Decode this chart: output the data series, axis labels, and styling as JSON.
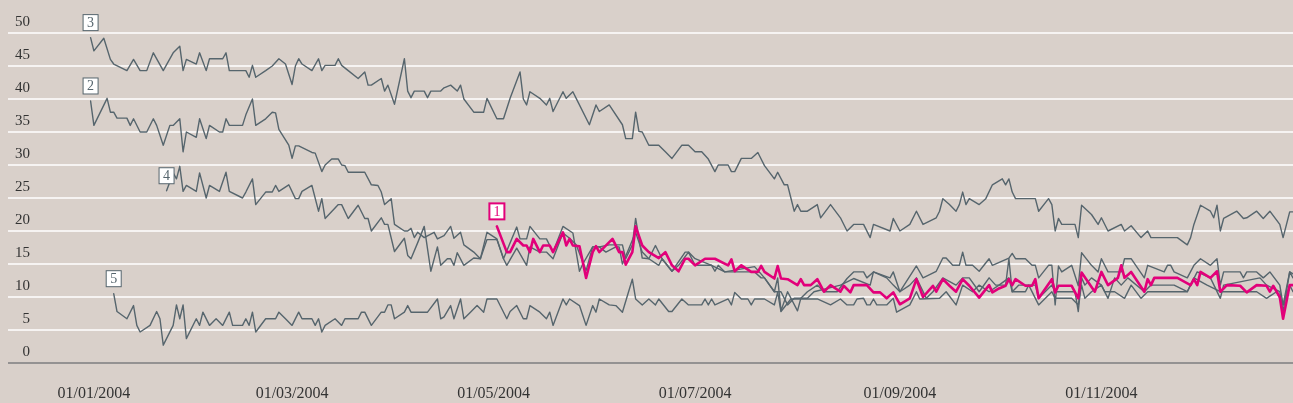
{
  "chart_data": {
    "type": "line",
    "xlim": [
      "2003-12-06",
      "2004-12-29"
    ],
    "ylim": [
      0,
      55
    ],
    "xticks": [
      {
        "value": "2004-01-01",
        "label": "01/01/2004"
      },
      {
        "value": "2004-03-01",
        "label": "01/03/2004"
      },
      {
        "value": "2004-05-01",
        "label": "01/05/2004"
      },
      {
        "value": "2004-07-01",
        "label": "01/07/2004"
      },
      {
        "value": "2004-09-01",
        "label": "01/09/2004"
      },
      {
        "value": "2004-11-01",
        "label": "01/11/2004"
      }
    ],
    "yticks": [
      0,
      5,
      10,
      15,
      20,
      25,
      30,
      35,
      40,
      45,
      50
    ],
    "grid": "y",
    "legend": false,
    "marker": "none",
    "line_style": "solid",
    "series": [
      {
        "name": "1",
        "color": "#e2007a",
        "x": [
          "2004-05-02",
          "2004-05-05",
          "2004-05-06",
          "2004-05-08",
          "2004-05-10",
          "2004-05-11",
          "2004-05-12",
          "2004-05-13",
          "2004-05-15",
          "2004-05-16",
          "2004-05-18",
          "2004-05-19",
          "2004-05-22",
          "2004-05-23",
          "2004-05-24",
          "2004-05-25",
          "2004-05-27",
          "2004-05-29",
          "2004-05-31",
          "2004-06-01",
          "2004-06-02",
          "2004-06-06",
          "2004-06-08",
          "2004-06-09",
          "2004-06-10",
          "2004-06-12",
          "2004-06-13",
          "2004-06-15",
          "2004-06-17",
          "2004-06-20",
          "2004-06-22",
          "2004-06-24",
          "2004-06-26",
          "2004-06-28",
          "2004-06-29",
          "2004-07-01",
          "2004-07-04",
          "2004-07-07",
          "2004-07-11",
          "2004-07-12",
          "2004-07-13",
          "2004-07-15",
          "2004-07-18",
          "2004-07-20",
          "2004-07-21",
          "2004-07-22",
          "2004-07-25",
          "2004-07-26",
          "2004-07-27",
          "2004-07-29",
          "2004-08-01",
          "2004-08-02",
          "2004-08-03",
          "2004-08-05",
          "2004-08-07",
          "2004-08-09",
          "2004-08-11",
          "2004-08-14",
          "2004-08-15",
          "2004-08-17",
          "2004-08-18",
          "2004-08-22",
          "2004-08-24",
          "2004-08-26",
          "2004-08-28",
          "2004-08-30",
          "2004-09-01",
          "2004-09-04",
          "2004-09-06",
          "2004-09-08",
          "2004-09-11",
          "2004-09-12",
          "2004-09-14",
          "2004-09-16",
          "2004-09-18",
          "2004-09-20",
          "2004-09-22",
          "2004-09-25",
          "2004-09-28",
          "2004-09-29",
          "2004-10-01",
          "2004-10-03",
          "2004-10-04",
          "2004-10-05",
          "2004-10-06",
          "2004-10-09",
          "2004-10-11",
          "2004-10-12",
          "2004-10-13",
          "2004-10-17",
          "2004-10-18",
          "2004-10-19",
          "2004-10-23",
          "2004-10-25",
          "2004-10-26",
          "2004-10-30",
          "2004-11-01",
          "2004-11-03",
          "2004-11-06",
          "2004-11-07",
          "2004-11-08",
          "2004-11-10",
          "2004-11-14",
          "2004-11-15",
          "2004-11-16",
          "2004-11-17",
          "2004-11-24",
          "2004-11-28",
          "2004-11-29",
          "2004-11-30",
          "2004-12-01",
          "2004-12-04",
          "2004-12-06",
          "2004-12-07",
          "2004-12-09",
          "2004-12-13",
          "2004-12-15",
          "2004-12-18",
          "2004-12-21",
          "2004-12-22",
          "2004-12-23",
          "2004-12-25",
          "2004-12-26",
          "2004-12-28",
          "2004-12-29"
        ],
        "values": [
          20.7,
          16.8,
          16.8,
          18.8,
          17.8,
          17.8,
          16.8,
          18.8,
          16.8,
          17.8,
          17.8,
          16.8,
          19.8,
          17.8,
          18.8,
          17.8,
          17.7,
          12.9,
          16.8,
          17.7,
          16.8,
          18.8,
          16.8,
          16.8,
          14.9,
          16.8,
          20.7,
          17.8,
          16.8,
          15.9,
          16.8,
          14.8,
          13.9,
          15.8,
          15.8,
          14.8,
          15.8,
          15.8,
          14.8,
          15.7,
          13.9,
          14.8,
          13.8,
          13.8,
          14.7,
          13.8,
          12.8,
          14.7,
          12.8,
          12.7,
          11.8,
          12.7,
          11.8,
          11.8,
          12.7,
          10.8,
          11.8,
          10.8,
          11.7,
          10.7,
          11.8,
          11.8,
          10.7,
          10.7,
          9.8,
          10.7,
          8.9,
          9.8,
          12.7,
          10,
          11.7,
          10.8,
          12.7,
          11.7,
          10.8,
          12.7,
          11.7,
          9.9,
          11.8,
          10.7,
          11.3,
          11.7,
          12.7,
          11.8,
          12.7,
          11.7,
          11.7,
          12.7,
          9.8,
          12.7,
          10.7,
          11.7,
          11.7,
          9.8,
          13.7,
          10.8,
          13.8,
          11.8,
          12.9,
          14.8,
          12.9,
          13.8,
          10.8,
          12.7,
          11.8,
          12.9,
          12.9,
          11.8,
          12.7,
          11.8,
          13.8,
          12.9,
          13.9,
          10.8,
          11.8,
          11.7,
          10.7,
          11.8,
          11.7,
          10.8,
          11.7,
          10,
          6.7,
          11.8,
          11.8
        ]
      },
      {
        "name": "2",
        "color": "#56656d",
        "x": [
          "2003-12-31",
          "2004-01-01",
          "2004-01-05",
          "2004-01-06",
          "2004-01-07",
          "2004-01-08",
          "2004-01-11",
          "2004-01-12",
          "2004-01-13",
          "2004-01-15",
          "2004-01-17",
          "2004-01-19",
          "2004-01-20",
          "2004-01-22",
          "2004-01-24",
          "2004-01-25",
          "2004-01-27",
          "2004-01-28",
          "2004-01-29",
          "2004-02-01",
          "2004-02-02",
          "2004-02-04",
          "2004-02-05",
          "2004-02-08",
          "2004-02-09",
          "2004-02-10",
          "2004-02-11",
          "2004-02-15",
          "2004-02-16",
          "2004-02-18",
          "2004-02-19",
          "2004-02-22",
          "2004-02-24",
          "2004-02-25",
          "2004-02-26",
          "2004-02-29",
          "2004-03-01",
          "2004-03-02",
          "2004-03-03",
          "2004-03-07",
          "2004-03-08",
          "2004-03-10",
          "2004-03-11",
          "2004-03-13",
          "2004-03-15",
          "2004-03-16",
          "2004-03-17",
          "2004-03-18",
          "2004-03-23",
          "2004-03-25",
          "2004-03-27",
          "2004-03-28",
          "2004-03-29",
          "2004-03-31",
          "2004-04-01",
          "2004-04-04",
          "2004-04-05",
          "2004-04-06",
          "2004-04-07",
          "2004-04-08",
          "2004-04-10",
          "2004-04-13",
          "2004-04-14",
          "2004-04-16",
          "2004-04-18",
          "2004-04-19",
          "2004-04-21",
          "2004-04-22",
          "2004-04-25",
          "2004-04-27",
          "2004-04-29",
          "2004-05-02",
          "2004-05-04",
          "2004-05-08",
          "2004-05-09",
          "2004-05-11",
          "2004-05-12",
          "2004-05-15",
          "2004-05-17",
          "2004-05-19",
          "2004-05-22",
          "2004-05-25",
          "2004-05-27",
          "2004-05-28",
          "2004-05-31",
          "2004-06-02",
          "2004-06-04",
          "2004-06-07",
          "2004-06-08",
          "2004-06-09",
          "2004-06-11",
          "2004-06-13",
          "2004-06-15",
          "2004-06-17",
          "2004-06-20",
          "2004-06-21",
          "2004-06-24",
          "2004-06-26",
          "2004-06-29",
          "2004-07-01",
          "2004-07-06",
          "2004-07-10",
          "2004-07-19",
          "2004-07-22",
          "2004-07-25",
          "2004-07-27",
          "2004-07-28",
          "2004-07-29",
          "2004-07-31",
          "2004-08-04",
          "2004-08-06",
          "2004-08-14",
          "2004-08-18",
          "2004-08-23",
          "2004-08-24",
          "2004-08-28",
          "2004-08-30",
          "2004-09-01",
          "2004-09-04",
          "2004-09-06",
          "2004-09-09",
          "2004-09-11",
          "2004-09-14",
          "2004-09-18",
          "2004-09-20",
          "2004-09-22",
          "2004-09-25",
          "2004-09-28",
          "2004-09-30",
          "2004-10-03",
          "2004-10-04",
          "2004-10-05",
          "2004-10-07",
          "2004-10-12",
          "2004-10-13",
          "2004-10-17",
          "2004-10-18",
          "2004-10-24",
          "2004-10-25",
          "2004-10-26",
          "2004-10-27",
          "2004-10-29",
          "2004-11-01",
          "2004-11-03",
          "2004-11-05",
          "2004-11-07",
          "2004-11-09",
          "2004-11-14",
          "2004-11-16",
          "2004-11-23",
          "2004-11-27",
          "2004-11-30",
          "2004-12-04",
          "2004-12-07",
          "2004-12-08",
          "2004-12-19",
          "2004-12-21",
          "2004-12-25",
          "2004-12-26",
          "2004-12-28",
          "2004-12-29"
        ],
        "values": [
          39.7,
          36,
          40.1,
          38,
          38,
          37.1,
          37.1,
          36,
          37,
          35,
          35,
          37,
          36,
          33,
          36,
          36,
          37,
          32,
          35,
          34.2,
          37,
          34,
          36,
          35,
          35,
          37,
          36,
          36,
          37.6,
          40,
          36,
          37,
          38,
          37.9,
          35.4,
          33,
          31,
          32.9,
          32.9,
          31.9,
          31.8,
          29,
          30,
          30.9,
          30.9,
          30,
          29.9,
          28.9,
          28.9,
          27,
          26.9,
          25.9,
          24,
          24.9,
          21,
          20,
          20,
          20.4,
          19,
          19.8,
          19,
          19.8,
          18.8,
          19.3,
          20.7,
          18.9,
          19.8,
          17.9,
          16.8,
          15.8,
          19.8,
          18.8,
          15.8,
          20.6,
          18.8,
          18.8,
          20.7,
          18.8,
          18.8,
          16.8,
          20.7,
          19.7,
          13.9,
          15,
          17.6,
          17.6,
          16.8,
          17.6,
          17.6,
          15,
          17.4,
          19.8,
          16.8,
          15.8,
          14.8,
          15.8,
          13.9,
          14.8,
          16.8,
          15.8,
          14.8,
          13.8,
          14.6,
          12.9,
          10.8,
          10.8,
          9.8,
          8.8,
          9.8,
          9.8,
          10.8,
          11.8,
          12.8,
          11.8,
          13.8,
          12.9,
          11.8,
          10.8,
          11.8,
          12.9,
          9.8,
          10.8,
          12.9,
          11.8,
          12.9,
          12.9,
          10.8,
          12.9,
          11.8,
          11.8,
          15.8,
          10.8,
          11.8,
          11.8,
          9.8,
          11.8,
          10.8,
          10.8,
          7.8,
          12.9,
          11.8,
          12.9,
          11.8,
          9.8,
          12.9,
          11.8,
          12.9,
          10.8,
          11.8,
          11.8,
          10.8,
          13.8,
          12.9,
          9.8,
          11.8,
          12.9,
          11.8,
          10.8,
          7.8,
          13.8,
          12.9
        ]
      },
      {
        "name": "3",
        "color": "#56656d",
        "x": [
          "2003-12-31",
          "2004-01-01",
          "2004-01-04",
          "2004-01-06",
          "2004-01-07",
          "2004-01-11",
          "2004-01-13",
          "2004-01-15",
          "2004-01-17",
          "2004-01-19",
          "2004-01-22",
          "2004-01-25",
          "2004-01-27",
          "2004-01-28",
          "2004-01-29",
          "2004-02-01",
          "2004-02-02",
          "2004-02-04",
          "2004-02-05",
          "2004-02-09",
          "2004-02-10",
          "2004-02-11",
          "2004-02-16",
          "2004-02-17",
          "2004-02-18",
          "2004-02-19",
          "2004-02-22",
          "2004-02-24",
          "2004-02-26",
          "2004-02-28",
          "2004-03-01",
          "2004-03-02",
          "2004-03-03",
          "2004-03-04",
          "2004-03-07",
          "2004-03-09",
          "2004-03-10",
          "2004-03-11",
          "2004-03-14",
          "2004-03-15",
          "2004-03-16",
          "2004-03-18",
          "2004-03-21",
          "2004-03-23",
          "2004-03-24",
          "2004-03-25",
          "2004-03-28",
          "2004-03-29",
          "2004-03-30",
          "2004-04-01",
          "2004-04-04",
          "2004-04-05",
          "2004-04-06",
          "2004-04-07",
          "2004-04-10",
          "2004-04-11",
          "2004-04-12",
          "2004-04-15",
          "2004-04-16",
          "2004-04-18",
          "2004-04-20",
          "2004-04-21",
          "2004-04-22",
          "2004-04-25",
          "2004-04-28",
          "2004-04-29",
          "2004-05-02",
          "2004-05-04",
          "2004-05-06",
          "2004-05-09",
          "2004-05-10",
          "2004-05-11",
          "2004-05-12",
          "2004-05-15",
          "2004-05-17",
          "2004-05-18",
          "2004-05-19",
          "2004-05-22",
          "2004-05-23",
          "2004-05-25",
          "2004-05-26",
          "2004-05-30",
          "2004-06-01",
          "2004-06-02",
          "2004-06-05",
          "2004-06-09",
          "2004-06-10",
          "2004-06-12",
          "2004-06-13",
          "2004-06-14",
          "2004-06-15",
          "2004-06-17",
          "2004-06-20",
          "2004-06-22",
          "2004-06-24",
          "2004-06-27",
          "2004-06-29",
          "2004-07-01",
          "2004-07-03",
          "2004-07-05",
          "2004-07-07",
          "2004-07-08",
          "2004-07-11",
          "2004-07-12",
          "2004-07-13",
          "2004-07-15",
          "2004-07-18",
          "2004-07-20",
          "2004-07-22",
          "2004-07-25",
          "2004-07-26",
          "2004-07-28",
          "2004-07-29",
          "2004-07-30",
          "2004-07-31",
          "2004-08-01",
          "2004-08-02",
          "2004-08-04",
          "2004-08-07",
          "2004-08-08",
          "2004-08-11",
          "2004-08-14",
          "2004-08-16",
          "2004-08-18",
          "2004-08-21",
          "2004-08-23",
          "2004-08-24",
          "2004-08-29",
          "2004-08-30",
          "2004-09-01",
          "2004-09-04",
          "2004-09-06",
          "2004-09-08",
          "2004-09-12",
          "2004-09-13",
          "2004-09-14",
          "2004-09-16",
          "2004-09-18",
          "2004-09-19",
          "2004-09-20",
          "2004-09-21",
          "2004-09-22",
          "2004-09-25",
          "2004-09-27",
          "2004-09-29",
          "2004-10-02",
          "2004-10-03",
          "2004-10-04",
          "2004-10-05",
          "2004-10-06",
          "2004-10-12",
          "2004-10-13",
          "2004-10-16",
          "2004-10-17",
          "2004-10-18",
          "2004-10-19",
          "2004-10-20",
          "2004-10-24",
          "2004-10-25",
          "2004-10-26",
          "2004-10-29",
          "2004-10-31",
          "2004-11-01",
          "2004-11-03",
          "2004-11-07",
          "2004-11-08",
          "2004-11-10",
          "2004-11-13",
          "2004-11-15",
          "2004-11-16",
          "2004-11-24",
          "2004-11-27",
          "2004-11-28",
          "2004-11-29",
          "2004-12-01",
          "2004-12-04",
          "2004-12-05",
          "2004-12-06",
          "2004-12-07",
          "2004-12-08",
          "2004-12-12",
          "2004-12-14",
          "2004-12-15",
          "2004-12-18",
          "2004-12-20",
          "2004-12-22",
          "2004-12-25",
          "2004-12-26",
          "2004-12-28",
          "2004-12-29"
        ],
        "values": [
          49.3,
          47.3,
          49.2,
          46,
          45.3,
          44.3,
          46,
          44.3,
          44.3,
          47,
          44.3,
          47,
          48,
          44.3,
          46,
          45.3,
          47,
          44.3,
          46.1,
          46.1,
          47,
          44.3,
          44.3,
          43.3,
          45.1,
          43.3,
          44.3,
          45,
          46.1,
          45.3,
          42.2,
          45,
          46.1,
          45.3,
          44.3,
          46.1,
          44.3,
          45.1,
          45.1,
          46.1,
          45.1,
          44.3,
          43.1,
          44.1,
          42.1,
          42.1,
          43.1,
          41.2,
          42.1,
          39.2,
          46.1,
          41.2,
          40.2,
          41.2,
          41.2,
          40.2,
          41.2,
          41.2,
          41.7,
          42.1,
          41.2,
          42.1,
          40,
          38,
          38,
          40.1,
          37,
          37,
          40.1,
          44.1,
          40,
          39.1,
          41.1,
          40.1,
          39.1,
          40.1,
          38.1,
          41.1,
          40.1,
          41.1,
          40.1,
          36.1,
          39.1,
          38.1,
          39.1,
          36.1,
          34,
          34,
          38,
          35.1,
          35,
          33,
          33,
          32,
          31,
          33,
          33,
          32,
          32,
          30.9,
          29,
          30,
          30,
          29,
          29,
          31,
          31,
          31.9,
          29.9,
          27.9,
          28.9,
          27,
          27,
          25,
          23,
          24,
          23,
          23,
          24,
          22,
          24,
          22,
          20,
          21,
          21,
          19,
          21,
          20,
          21.9,
          20,
          21,
          23,
          21,
          22,
          23,
          24.9,
          24,
          23,
          24,
          25.9,
          24,
          24.9,
          24,
          24.9,
          27,
          27.9,
          27,
          27.9,
          25.9,
          24.9,
          24.9,
          23,
          24.9,
          24,
          20,
          21.9,
          21,
          21,
          19,
          23.9,
          22.5,
          21,
          22,
          20,
          21,
          20,
          20.8,
          19,
          20,
          19,
          19,
          17.9,
          19,
          21,
          23.9,
          23,
          22,
          23.9,
          20,
          21.9,
          23,
          21.9,
          22,
          23,
          21.9,
          23,
          21,
          19,
          22.9,
          22.9
        ]
      },
      {
        "name": "4",
        "color": "#56656d",
        "x": [
          "2004-01-23",
          "2004-01-25",
          "2004-01-26",
          "2004-01-27",
          "2004-01-28",
          "2004-01-29",
          "2004-02-01",
          "2004-02-02",
          "2004-02-04",
          "2004-02-05",
          "2004-02-08",
          "2004-02-10",
          "2004-02-11",
          "2004-02-15",
          "2004-02-16",
          "2004-02-18",
          "2004-02-19",
          "2004-02-22",
          "2004-02-24",
          "2004-02-25",
          "2004-02-26",
          "2004-02-29",
          "2004-03-02",
          "2004-03-03",
          "2004-03-04",
          "2004-03-07",
          "2004-03-09",
          "2004-03-10",
          "2004-03-11",
          "2004-03-15",
          "2004-03-16",
          "2004-03-18",
          "2004-03-21",
          "2004-03-23",
          "2004-03-24",
          "2004-03-25",
          "2004-03-28",
          "2004-03-29",
          "2004-03-30",
          "2004-04-01",
          "2004-04-04",
          "2004-04-05",
          "2004-04-06",
          "2004-04-08",
          "2004-04-10",
          "2004-04-12",
          "2004-04-14",
          "2004-04-15",
          "2004-04-17",
          "2004-04-18",
          "2004-04-19",
          "2004-04-20",
          "2004-04-22",
          "2004-04-25",
          "2004-04-27",
          "2004-04-29",
          "2004-05-02",
          "2004-05-04",
          "2004-05-05",
          "2004-05-08",
          "2004-05-11",
          "2004-05-12",
          "2004-05-15",
          "2004-05-17",
          "2004-05-19",
          "2004-05-22",
          "2004-05-24",
          "2004-05-26",
          "2004-05-29",
          "2004-05-31",
          "2004-06-02",
          "2004-06-05",
          "2004-06-09",
          "2004-06-10",
          "2004-06-12",
          "2004-06-13",
          "2004-06-15",
          "2004-06-17",
          "2004-06-19",
          "2004-06-21",
          "2004-06-24",
          "2004-06-28",
          "2004-06-29",
          "2004-07-01",
          "2004-07-06",
          "2004-07-07",
          "2004-07-08",
          "2004-07-10",
          "2004-07-16",
          "2004-07-19",
          "2004-07-21",
          "2004-07-22",
          "2004-07-25",
          "2004-07-26",
          "2004-07-27",
          "2004-07-29",
          "2004-08-01",
          "2004-08-02",
          "2004-08-04",
          "2004-08-07",
          "2004-08-09",
          "2004-08-13",
          "2004-08-16",
          "2004-08-18",
          "2004-08-21",
          "2004-08-22",
          "2004-08-24",
          "2004-08-29",
          "2004-08-30",
          "2004-09-01",
          "2004-09-06",
          "2004-09-08",
          "2004-09-12",
          "2004-09-14",
          "2004-09-15",
          "2004-09-17",
          "2004-09-19",
          "2004-09-20",
          "2004-09-21",
          "2004-09-23",
          "2004-09-25",
          "2004-09-28",
          "2004-09-29",
          "2004-10-04",
          "2004-10-05",
          "2004-10-06",
          "2004-10-09",
          "2004-10-11",
          "2004-10-12",
          "2004-10-13",
          "2004-10-16",
          "2004-10-17",
          "2004-10-18",
          "2004-10-19",
          "2004-10-20",
          "2004-10-23",
          "2004-10-25",
          "2004-10-26",
          "2004-10-29",
          "2004-10-31",
          "2004-11-01",
          "2004-11-03",
          "2004-11-07",
          "2004-11-08",
          "2004-11-10",
          "2004-11-14",
          "2004-11-15",
          "2004-11-20",
          "2004-11-21",
          "2004-11-22",
          "2004-11-23",
          "2004-11-27",
          "2004-11-29",
          "2004-12-01",
          "2004-12-04",
          "2004-12-06",
          "2004-12-07",
          "2004-12-08",
          "2004-12-13",
          "2004-12-14",
          "2004-12-15",
          "2004-12-18",
          "2004-12-20",
          "2004-12-22",
          "2004-12-25",
          "2004-12-26",
          "2004-12-28",
          "2004-12-29"
        ],
        "values": [
          26.1,
          28.8,
          27.9,
          29.8,
          26,
          26.9,
          26,
          28.8,
          25,
          26.9,
          26,
          28.9,
          26,
          25,
          25.9,
          27.9,
          24,
          25.9,
          25.9,
          26.9,
          26,
          27,
          24.9,
          24.9,
          26,
          26.9,
          23,
          24.9,
          21.9,
          24,
          24,
          21.9,
          23.9,
          21.9,
          21.9,
          20,
          22,
          21,
          21,
          16.9,
          18.9,
          16.3,
          15.8,
          18.2,
          20.7,
          13.9,
          17.6,
          14.8,
          15.8,
          15.8,
          14.8,
          16.7,
          14.8,
          15.9,
          15.8,
          18.7,
          18.7,
          15.8,
          14.8,
          17.4,
          14.8,
          17.6,
          16.8,
          16.8,
          15.8,
          19.7,
          18.9,
          17.9,
          14,
          17.6,
          17.6,
          17.9,
          17.9,
          15.8,
          17.9,
          21.9,
          15.9,
          15.8,
          17.8,
          15.8,
          13.9,
          16.8,
          16.8,
          14.8,
          14.8,
          13.9,
          14.8,
          13.8,
          13.8,
          13.8,
          12.9,
          12.9,
          10.8,
          12.9,
          7.9,
          10.8,
          7.9,
          9.8,
          10.8,
          11.8,
          10.8,
          10.8,
          12.8,
          13.8,
          13.8,
          12.9,
          13.8,
          12.9,
          13.8,
          10.8,
          14.7,
          12.9,
          13.9,
          15.9,
          15.9,
          14.8,
          14.8,
          16.8,
          14.8,
          14.8,
          13.9,
          15.8,
          14.8,
          15.9,
          16.6,
          15.8,
          15.8,
          14.8,
          14.8,
          12.9,
          14.8,
          14.8,
          8.8,
          14.7,
          13.8,
          14.8,
          11.7,
          16.7,
          14.8,
          13.8,
          15.8,
          13.8,
          13.8,
          15.8,
          15.8,
          12.9,
          14.8,
          13.8,
          14.8,
          14.8,
          13.8,
          12.9,
          14.8,
          15.8,
          14.8,
          15.8,
          11.8,
          13.8,
          13.8,
          12.9,
          13.8,
          13.8,
          12.9,
          13.8,
          11.8,
          8.8,
          13.8,
          13.5
        ]
      },
      {
        "name": "5",
        "color": "#56656d",
        "x": [
          "2004-01-07",
          "2004-01-08",
          "2004-01-11",
          "2004-01-13",
          "2004-01-14",
          "2004-01-15",
          "2004-01-18",
          "2004-01-20",
          "2004-01-21",
          "2004-01-22",
          "2004-01-25",
          "2004-01-26",
          "2004-01-27",
          "2004-01-28",
          "2004-01-29",
          "2004-02-01",
          "2004-02-02",
          "2004-02-03",
          "2004-02-05",
          "2004-02-07",
          "2004-02-09",
          "2004-02-11",
          "2004-02-12",
          "2004-02-15",
          "2004-02-16",
          "2004-02-17",
          "2004-02-18",
          "2004-02-19",
          "2004-02-22",
          "2004-02-25",
          "2004-02-26",
          "2004-02-28",
          "2004-03-01",
          "2004-03-03",
          "2004-03-04",
          "2004-03-07",
          "2004-03-08",
          "2004-03-09",
          "2004-03-10",
          "2004-03-11",
          "2004-03-14",
          "2004-03-16",
          "2004-03-17",
          "2004-03-21",
          "2004-03-22",
          "2004-03-23",
          "2004-03-25",
          "2004-03-28",
          "2004-03-29",
          "2004-03-30",
          "2004-03-31",
          "2004-04-01",
          "2004-04-04",
          "2004-04-05",
          "2004-04-06",
          "2004-04-11",
          "2004-04-14",
          "2004-04-15",
          "2004-04-16",
          "2004-04-18",
          "2004-04-19",
          "2004-04-21",
          "2004-04-22",
          "2004-04-24",
          "2004-04-26",
          "2004-04-28",
          "2004-04-29",
          "2004-05-02",
          "2004-05-05",
          "2004-05-06",
          "2004-05-08",
          "2004-05-10",
          "2004-05-11",
          "2004-05-12",
          "2004-05-15",
          "2004-05-17",
          "2004-05-18",
          "2004-05-19",
          "2004-05-22",
          "2004-05-23",
          "2004-05-24",
          "2004-05-27",
          "2004-05-29",
          "2004-05-31",
          "2004-06-01",
          "2004-06-02",
          "2004-06-05",
          "2004-06-07",
          "2004-06-09",
          "2004-06-12",
          "2004-06-13",
          "2004-06-15",
          "2004-06-17",
          "2004-06-19",
          "2004-06-20",
          "2004-06-23",
          "2004-06-24",
          "2004-06-27",
          "2004-06-29",
          "2004-07-03",
          "2004-07-04",
          "2004-07-05",
          "2004-07-06",
          "2004-07-07",
          "2004-07-11",
          "2004-07-12",
          "2004-07-13",
          "2004-07-15",
          "2004-07-17",
          "2004-07-18",
          "2004-07-19",
          "2004-07-22",
          "2004-07-25",
          "2004-07-26",
          "2004-07-27",
          "2004-07-30",
          "2004-08-07",
          "2004-08-11",
          "2004-08-14",
          "2004-08-16",
          "2004-08-18",
          "2004-08-19",
          "2004-08-21",
          "2004-08-22",
          "2004-08-23",
          "2004-08-24",
          "2004-08-25",
          "2004-08-28",
          "2004-08-30",
          "2004-08-31",
          "2004-09-04",
          "2004-09-06",
          "2004-09-07",
          "2004-09-13",
          "2004-09-15",
          "2004-09-18",
          "2004-09-20",
          "2004-09-23",
          "2004-09-25",
          "2004-09-28",
          "2004-10-01",
          "2004-10-04",
          "2004-10-05",
          "2004-10-09",
          "2004-10-10",
          "2004-10-13",
          "2004-10-17",
          "2004-10-18",
          "2004-10-23",
          "2004-10-25",
          "2004-10-26",
          "2004-10-27",
          "2004-10-29",
          "2004-11-01",
          "2004-11-02",
          "2004-11-05",
          "2004-11-08",
          "2004-11-10",
          "2004-11-13",
          "2004-11-15",
          "2004-11-27",
          "2004-11-29",
          "2004-12-03",
          "2004-12-07",
          "2004-12-18",
          "2004-12-21",
          "2004-12-24",
          "2004-12-26",
          "2004-12-28",
          "2004-12-29"
        ],
        "values": [
          10.5,
          7.8,
          6.7,
          8.7,
          5.7,
          4.7,
          5.7,
          7.8,
          6.7,
          2.7,
          5.7,
          8.8,
          6.7,
          8.8,
          3.7,
          6.7,
          5.7,
          7.7,
          5.7,
          6.7,
          5.7,
          7.7,
          5.7,
          5.7,
          6.7,
          5.7,
          7.7,
          4.7,
          6.7,
          6.7,
          7.7,
          6.7,
          5.7,
          7.7,
          6.7,
          6.7,
          5.7,
          6.7,
          4.7,
          5.7,
          6.7,
          5.7,
          6.7,
          6.7,
          7.7,
          7.7,
          5.7,
          7.7,
          7.7,
          8.8,
          8.8,
          6.7,
          7.7,
          8.7,
          7.7,
          7.7,
          9.7,
          6.7,
          7,
          8.7,
          6.7,
          9.7,
          6.7,
          7.7,
          8.7,
          7.7,
          9.7,
          9.7,
          6.7,
          7.8,
          8.7,
          6.7,
          6.7,
          8.7,
          7.7,
          6.7,
          7.7,
          5.7,
          9.7,
          8.8,
          9.7,
          8.7,
          5.7,
          8.7,
          7.7,
          9.7,
          8.8,
          8.7,
          7.7,
          12.7,
          9.7,
          8.8,
          9.7,
          8.8,
          9.7,
          7.8,
          7.8,
          9.7,
          8.8,
          8.8,
          9.7,
          8.8,
          9.7,
          8.8,
          9.7,
          8.8,
          10.7,
          9.7,
          9.7,
          8.8,
          9.7,
          9.7,
          8.8,
          10.7,
          7.8,
          9.7,
          9.7,
          8.8,
          9.7,
          8.8,
          8.8,
          9.7,
          9.8,
          8.8,
          8.8,
          9.7,
          8.8,
          8.8,
          9.8,
          7.7,
          8.8,
          10.8,
          9.7,
          9.8,
          10.8,
          8.8,
          11.8,
          10.8,
          11.8,
          10.8,
          11.8,
          12.9,
          10.8,
          10.8,
          11.8,
          8.8,
          10.8,
          9.8,
          9.8,
          8.8,
          11.8,
          9.8,
          10.8,
          11.8,
          10.8,
          10.8,
          9.8,
          11.8,
          9.8,
          10.8,
          10.8,
          12.9,
          11.8,
          10.8,
          10.8,
          9.8,
          10.8,
          8.8,
          11.8,
          10.8
        ]
      }
    ]
  }
}
